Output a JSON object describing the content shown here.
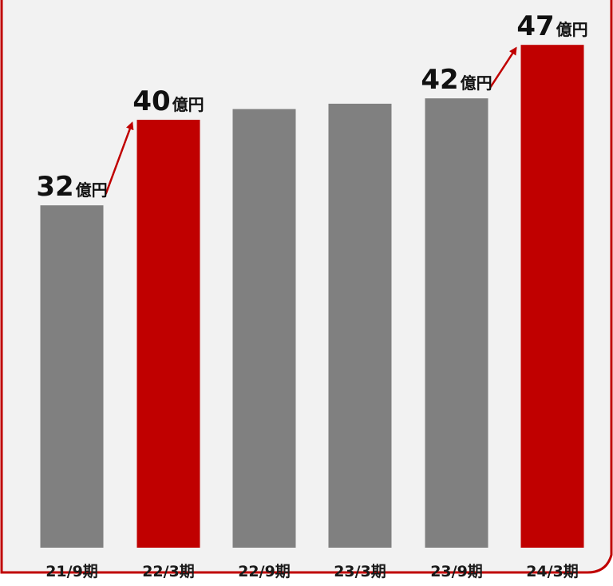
{
  "chart_data": {
    "type": "bar",
    "categories": [
      "21/9期",
      "22/3期",
      "22/9期",
      "23/3期",
      "23/9期",
      "24/3期"
    ],
    "values": [
      32,
      40,
      41,
      41.5,
      42,
      47
    ],
    "highlight": [
      false,
      true,
      false,
      false,
      false,
      true
    ],
    "data_labels": [
      {
        "index": 0,
        "number": "32",
        "unit": "億円"
      },
      {
        "index": 1,
        "number": "40",
        "unit": "億円"
      },
      {
        "index": 4,
        "number": "42",
        "unit": "億円"
      },
      {
        "index": 5,
        "number": "47",
        "unit": "億円"
      }
    ],
    "arrows": [
      {
        "from": 0,
        "to": 1
      },
      {
        "from": 4,
        "to": 5
      }
    ],
    "ylim": [
      0,
      50
    ],
    "grid": false,
    "colors": {
      "bar": "#808080",
      "highlight": "#c00000",
      "arrow": "#c00000",
      "frame": "#c00000",
      "panel": "#f2f2f2"
    }
  }
}
